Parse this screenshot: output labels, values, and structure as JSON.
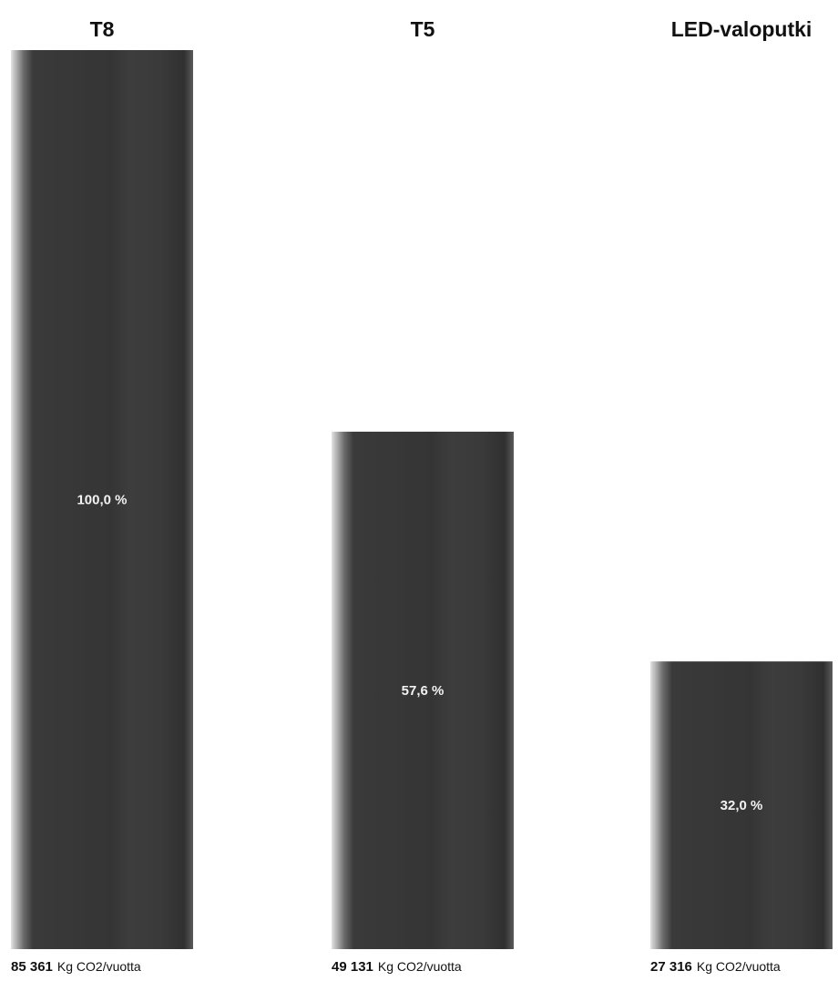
{
  "chart_data": {
    "type": "bar",
    "categories": [
      "T8",
      "T5",
      "LED-valoputki"
    ],
    "values": [
      85361,
      49131,
      27316
    ],
    "value_labels": [
      "85 361",
      "49 131",
      "27 316"
    ],
    "percent_labels": [
      "100,0 %",
      "57,6 %",
      "32,0 %"
    ],
    "unit": "Kg CO2/vuotta",
    "ylim": [
      0,
      85361
    ],
    "grid": false,
    "legend": "none"
  },
  "colors": {
    "bar_dark": "#363636",
    "bar_light": "#d8d8d8",
    "text": "#111111",
    "bar_text": "#f2f2f2"
  }
}
